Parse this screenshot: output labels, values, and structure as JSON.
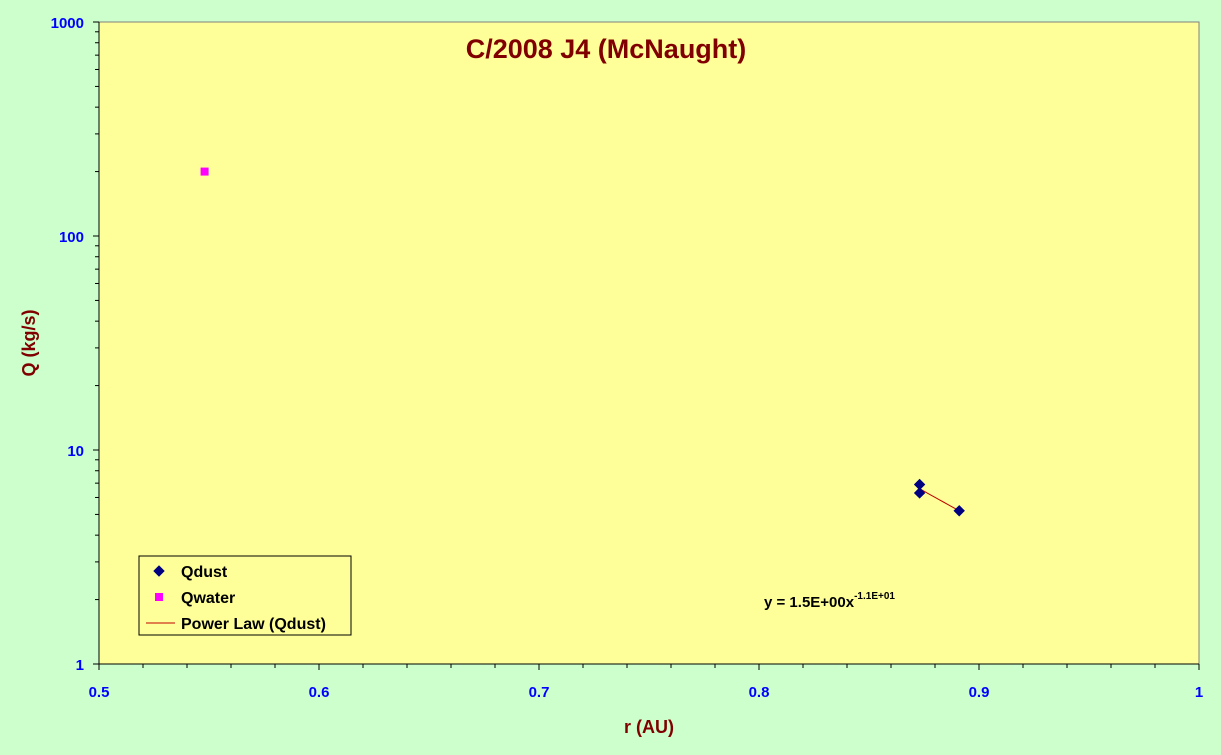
{
  "colors": {
    "background": "#ccffcc",
    "plot_area": "#ffff99",
    "title": "#800000",
    "axis_title": "#800000",
    "tick_label": "#0000ff",
    "qdust": "#000080",
    "qwater": "#ff00ff",
    "power_law": "#c00000"
  },
  "chart_data": {
    "type": "scatter",
    "title": "C/2008 J4 (McNaught)",
    "xlabel": "r (AU)",
    "ylabel": "Q (kg/s)",
    "xlim": [
      0.5,
      1.0
    ],
    "ylim": [
      1,
      1000
    ],
    "yscale": "log",
    "grid": false,
    "x_ticks": [
      "0.5",
      "0.6",
      "0.7",
      "0.8",
      "0.9",
      "1"
    ],
    "y_ticks": [
      "1",
      "10",
      "100",
      "1000"
    ],
    "legend_position": "bottom-left",
    "series": [
      {
        "name": "Qdust",
        "marker": "diamond",
        "color": "#000080",
        "points": [
          {
            "x": 0.873,
            "y": 6.9
          },
          {
            "x": 0.873,
            "y": 6.3
          },
          {
            "x": 0.891,
            "y": 5.2
          }
        ]
      },
      {
        "name": "Qwater",
        "marker": "square",
        "color": "#ff00ff",
        "points": [
          {
            "x": 0.548,
            "y": 200
          }
        ]
      }
    ],
    "trendline": {
      "name": "Power Law (Qdust)",
      "type": "power",
      "color": "#c00000",
      "x_range": [
        0.873,
        0.891
      ],
      "equation_main": "y = 1.5E+00x",
      "equation_exponent": "-1.1E+01"
    }
  }
}
